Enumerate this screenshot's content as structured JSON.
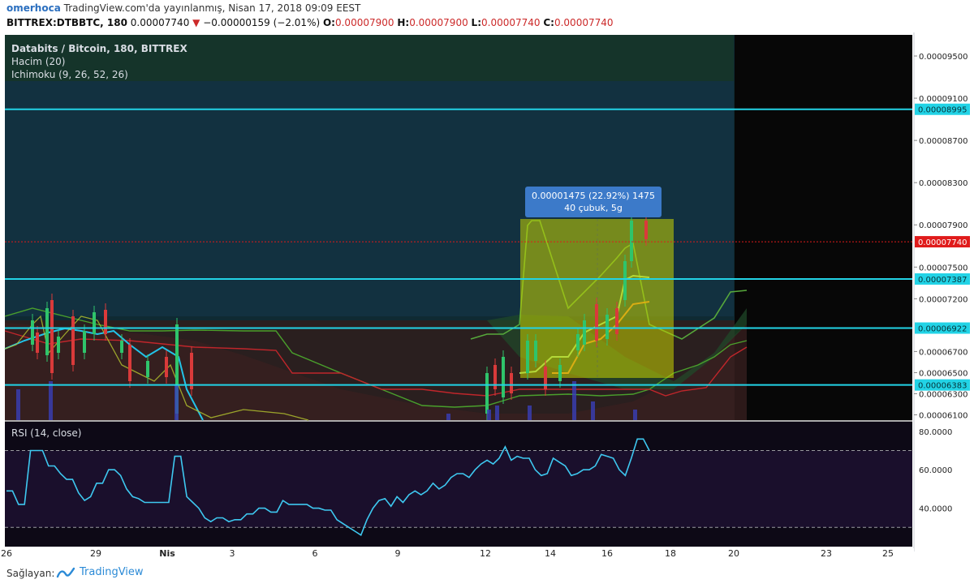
{
  "header": {
    "user": "omerhoca",
    "published": "TradingView.com'da yayınlanmış, Nisan 17, 2018 09:09 EEST",
    "symbol": "BITTREX:DTBBTC, 180",
    "last": "0.00007740",
    "change_arrow": "▼",
    "change": "−0.00000159 (−2.01%)",
    "o_label": "O:",
    "o": "0.00007900",
    "h_label": "H:",
    "h": "0.00007900",
    "l_label": "L:",
    "l": "0.00007740",
    "c_label": "C:",
    "c": "0.00007740"
  },
  "legend": {
    "title": "Databits / Bitcoin, 180, BITTREX",
    "volume": "Hacim (20)",
    "ichimoku": "Ichimoku (9, 26, 52, 26)",
    "rsi": "RSI (14, close)"
  },
  "tooltip": {
    "line1": "0.00001475 (22.92%) 1475",
    "line2": "40 çubuk, 5g"
  },
  "price_axis": [
    "0.00009500",
    "0.00009100",
    "0.00008700",
    "0.00008300",
    "0.00007900",
    "0.00007500",
    "0.00007200",
    "0.00006700",
    "0.00006500",
    "0.00006300",
    "0.00006100"
  ],
  "horizontal_levels": [
    "0.00008995",
    "0.00007387",
    "0.00006922",
    "0.00006383"
  ],
  "last_price_label": "0.00007740",
  "rsi_axis": [
    "80.0000",
    "60.0000",
    "40.0000"
  ],
  "time_axis": [
    "26",
    "29",
    "Nis",
    "3",
    "6",
    "9",
    "12",
    "14",
    "16",
    "18",
    "20",
    "23",
    "25"
  ],
  "footer": {
    "source_label": "Sağlayan:",
    "brand": "TradingView"
  },
  "colors": {
    "level_line": "#22d3e6",
    "last_price": "#e01b1b",
    "rsi_line": "#3ec8f0",
    "selection": "#c8d400",
    "tenkan": "#22c3e8",
    "kijun": "#c0262b",
    "chikou": "#4aa02c",
    "cloud_green": "#1d6b2b",
    "cloud_red": "#7a1c1c"
  },
  "chart_data": {
    "type": "line",
    "title": "Databits / Bitcoin, 180, BITTREX",
    "ylim": [
      6.05e-05,
      9.7e-05
    ],
    "rsi": {
      "name": "RSI (14, close)",
      "ylim": [
        20,
        85
      ],
      "bands": [
        70,
        30
      ],
      "values": [
        49,
        49,
        42,
        42,
        70,
        70,
        70,
        62,
        62,
        58,
        55,
        55,
        48,
        44,
        46,
        53,
        53,
        60,
        60,
        57,
        50,
        46,
        45,
        43,
        43,
        43,
        43,
        43,
        67,
        67,
        46,
        43,
        40,
        35,
        33,
        35,
        35,
        33,
        34,
        34,
        37,
        37,
        40,
        40,
        38,
        38,
        44,
        42,
        42,
        42,
        42,
        40,
        40,
        39,
        39,
        34,
        32,
        30,
        28,
        26,
        34,
        40,
        44,
        45,
        41,
        46,
        43,
        47,
        49,
        47,
        49,
        53,
        50,
        52,
        56,
        58,
        58,
        56,
        60,
        63,
        65,
        63,
        66,
        72,
        65,
        67,
        66,
        66,
        60,
        57,
        58,
        66,
        64,
        62,
        57,
        58,
        60,
        60,
        62,
        68,
        67,
        66,
        60,
        57,
        66,
        76,
        76,
        70
      ]
    },
    "measure": {
      "value": 1.475e-05,
      "percent": 22.92,
      "ticks": 1475,
      "bars": 40,
      "days": "5g"
    }
  }
}
